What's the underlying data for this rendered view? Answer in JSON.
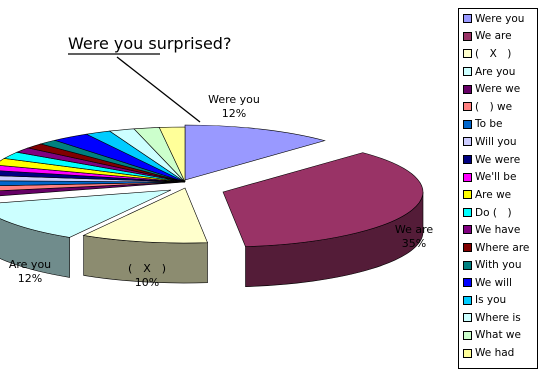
{
  "chart_data": {
    "type": "pie",
    "title": "Were you surprised?",
    "legend_position": "right",
    "slices": [
      {
        "label": "Were you",
        "value": 12,
        "value_label": "12%",
        "color": "#9999ff",
        "show_label": true
      },
      {
        "label": "We are",
        "value": 35,
        "value_label": "35%",
        "color": "#993366",
        "show_label": true
      },
      {
        "label": "(　X　)",
        "value": 10,
        "value_label": "10%",
        "color": "#ffffcc",
        "show_label": true
      },
      {
        "label": "Are you",
        "value": 12,
        "value_label": "12%",
        "color": "#ccffff",
        "show_label": true
      },
      {
        "label": "Were we",
        "value": 1.5,
        "color": "#660066"
      },
      {
        "label": "(　) we",
        "value": 1.5,
        "color": "#ff8080"
      },
      {
        "label": "To be",
        "value": 1.5,
        "color": "#0066cc"
      },
      {
        "label": "Will you",
        "value": 1.5,
        "color": "#ccccff"
      },
      {
        "label": "We were",
        "value": 1.5,
        "color": "#000080"
      },
      {
        "label": "We'll be",
        "value": 1.5,
        "color": "#ff00ff"
      },
      {
        "label": "Are we",
        "value": 2,
        "color": "#ffff00"
      },
      {
        "label": "Do (　)",
        "value": 2,
        "color": "#00ffff"
      },
      {
        "label": "We have",
        "value": 1.5,
        "color": "#800080"
      },
      {
        "label": "Where are",
        "value": 1.5,
        "color": "#800000"
      },
      {
        "label": "With you",
        "value": 1.5,
        "color": "#008080"
      },
      {
        "label": "We will",
        "value": 3,
        "color": "#0000ff"
      },
      {
        "label": "Is you",
        "value": 2,
        "color": "#00ccff"
      },
      {
        "label": "Where is",
        "value": 2,
        "color": "#ccffff"
      },
      {
        "label": "What we",
        "value": 2,
        "color": "#ccffcc"
      },
      {
        "label": "We had",
        "value": 2,
        "color": "#ffff99"
      }
    ]
  }
}
